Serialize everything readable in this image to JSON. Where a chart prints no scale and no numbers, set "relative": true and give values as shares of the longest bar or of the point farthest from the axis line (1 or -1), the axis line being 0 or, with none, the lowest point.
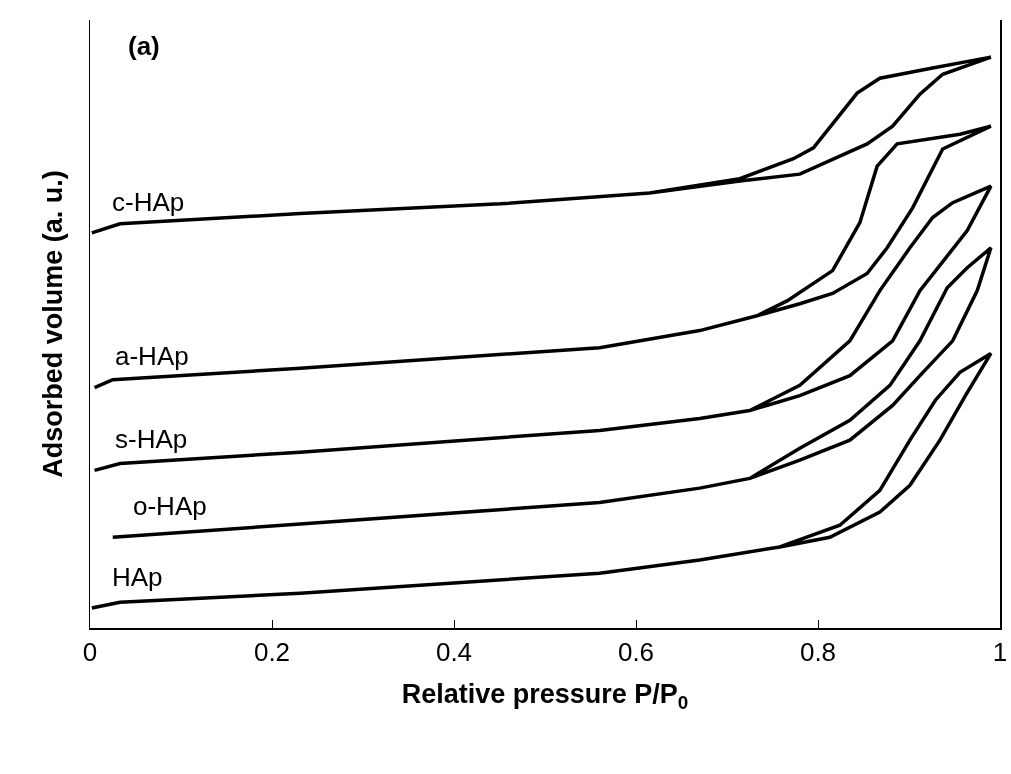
{
  "chart_data": {
    "type": "line",
    "xlabel": "Relative pressure P/P$_{0}$",
    "ylabel": "Adsorbed volume (a. u.)",
    "relative": true,
    "xlim": [
      0,
      1
    ],
    "xticks": [
      0,
      0.2,
      0.4,
      0.6,
      0.8,
      1
    ],
    "grid": false,
    "legend": false,
    "marker": "none",
    "line_style": "solid",
    "tick_labels": "x",
    "annotations": [
      "(a)"
    ],
    "series": [
      {
        "name": "c-HAp",
        "color": "#000000",
        "x": [
          0.002,
          0.033,
          0.231,
          0.451,
          0.615,
          0.714,
          0.78,
          0.854,
          0.882,
          0.912,
          0.937,
          0.99,
          0.926,
          0.868,
          0.843,
          0.795,
          0.773,
          0.714,
          0.615
        ],
        "values": [
          0.692,
          0.708,
          0.726,
          0.743,
          0.762,
          0.783,
          0.795,
          0.848,
          0.879,
          0.935,
          0.97,
          1,
          0.981,
          0.963,
          0.937,
          0.841,
          0.822,
          0.787,
          0.762
        ]
      },
      {
        "name": "a-HAp",
        "color": "#000000",
        "x": [
          0.005,
          0.025,
          0.231,
          0.56,
          0.67,
          0.733,
          0.78,
          0.816,
          0.854,
          0.876,
          0.904,
          0.937,
          0.99,
          0.956,
          0.887,
          0.865,
          0.846,
          0.816,
          0.766,
          0.733
        ],
        "values": [
          0.421,
          0.435,
          0.455,
          0.491,
          0.521,
          0.547,
          0.568,
          0.586,
          0.621,
          0.666,
          0.736,
          0.839,
          0.879,
          0.865,
          0.848,
          0.809,
          0.71,
          0.626,
          0.573,
          0.547
        ]
      },
      {
        "name": "s-HAp",
        "color": "#000000",
        "x": [
          0.005,
          0.033,
          0.231,
          0.56,
          0.67,
          0.725,
          0.78,
          0.835,
          0.882,
          0.912,
          0.964,
          0.99,
          0.948,
          0.926,
          0.901,
          0.868,
          0.835,
          0.78,
          0.725
        ],
        "values": [
          0.276,
          0.288,
          0.308,
          0.346,
          0.367,
          0.381,
          0.407,
          0.442,
          0.503,
          0.591,
          0.696,
          0.774,
          0.745,
          0.719,
          0.666,
          0.591,
          0.503,
          0.425,
          0.381
        ]
      },
      {
        "name": "o-HAp",
        "color": "#000000",
        "x": [
          0.025,
          0.231,
          0.56,
          0.67,
          0.725,
          0.78,
          0.835,
          0.882,
          0.912,
          0.948,
          0.975,
          0.99,
          0.964,
          0.942,
          0.912,
          0.879,
          0.835,
          0.78,
          0.725
        ],
        "values": [
          0.159,
          0.182,
          0.22,
          0.245,
          0.262,
          0.294,
          0.329,
          0.39,
          0.442,
          0.503,
          0.591,
          0.666,
          0.631,
          0.596,
          0.503,
          0.425,
          0.364,
          0.315,
          0.262
        ]
      },
      {
        "name": "HAp",
        "color": "#000000",
        "x": [
          0.002,
          0.033,
          0.231,
          0.56,
          0.67,
          0.758,
          0.813,
          0.868,
          0.901,
          0.934,
          0.962,
          0.99,
          0.956,
          0.929,
          0.901,
          0.868,
          0.824,
          0.758
        ],
        "values": [
          0.035,
          0.045,
          0.061,
          0.096,
          0.119,
          0.142,
          0.159,
          0.203,
          0.25,
          0.329,
          0.407,
          0.481,
          0.448,
          0.399,
          0.329,
          0.241,
          0.18,
          0.142
        ]
      }
    ]
  }
}
